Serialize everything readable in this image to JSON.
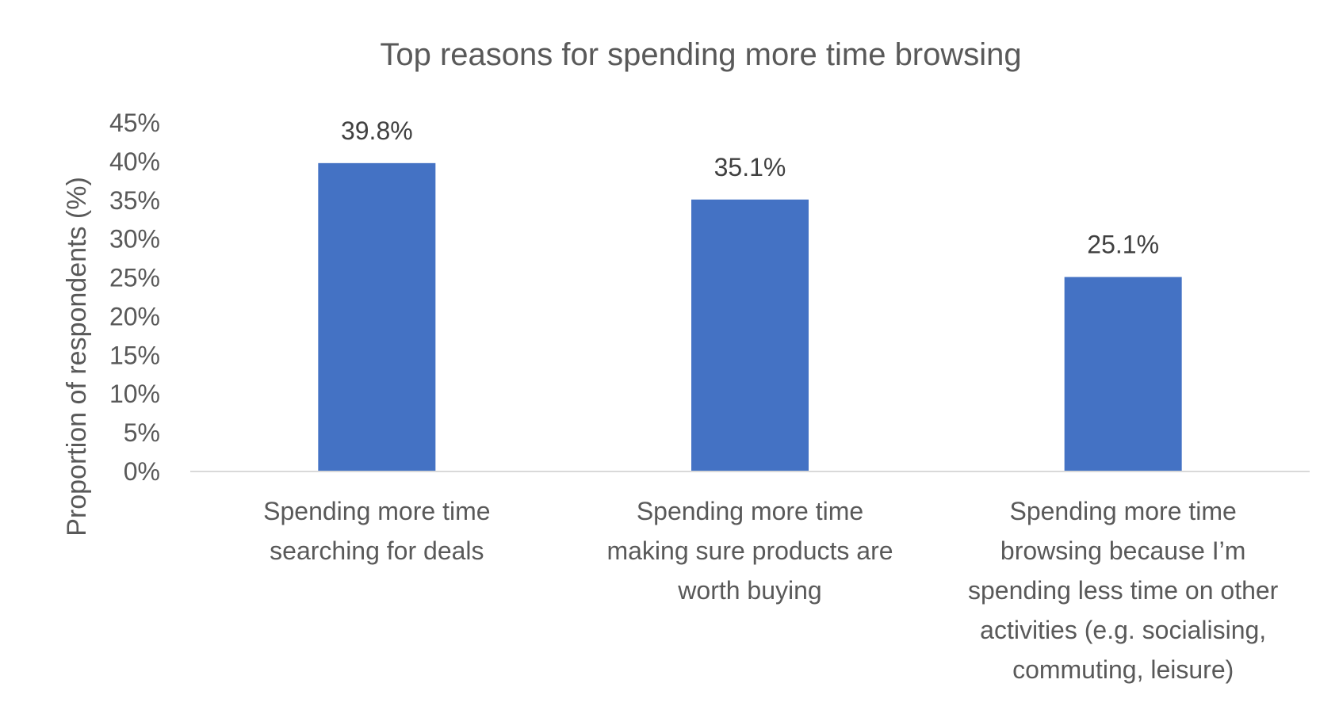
{
  "chart_data": {
    "type": "bar",
    "title": "Top reasons for spending more time browsing",
    "xlabel": "",
    "ylabel": "Proportion of respondents (%)",
    "ylim": [
      0,
      45
    ],
    "ytick_step": 5,
    "ytick_labels": [
      "0%",
      "5%",
      "10%",
      "15%",
      "20%",
      "25%",
      "30%",
      "35%",
      "40%",
      "45%"
    ],
    "grid": false,
    "legend": "none",
    "bar_color": "#4472C4",
    "categories": [
      [
        "Spending more time",
        "searching for deals"
      ],
      [
        "Spending more time",
        "making sure products are",
        "worth buying"
      ],
      [
        "Spending more time",
        "browsing because I’m",
        "spending less time on other",
        "activities (e.g. socialising,",
        "commuting, leisure)"
      ]
    ],
    "values": [
      39.8,
      35.1,
      25.1
    ],
    "data_labels": [
      "39.8%",
      "35.1%",
      "25.1%"
    ]
  }
}
